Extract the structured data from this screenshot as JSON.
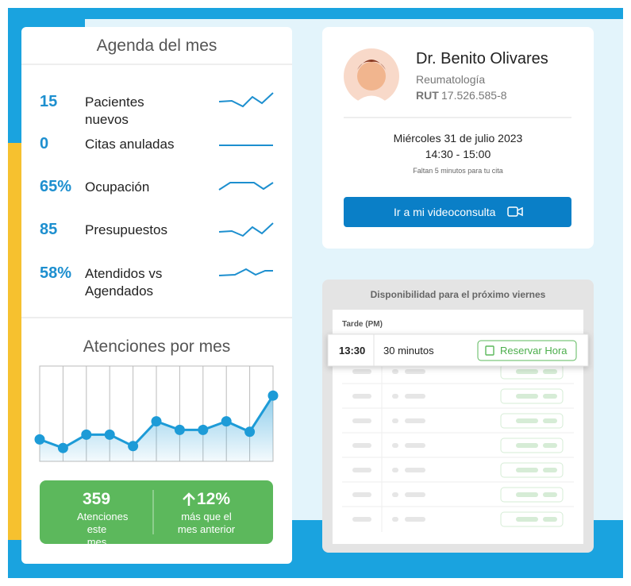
{
  "agenda": {
    "title": "Agenda del mes",
    "rows": [
      {
        "value": "15",
        "label": "Pacientes nuevos"
      },
      {
        "value": "0",
        "label": "Citas anuladas"
      },
      {
        "value": "65%",
        "label": "Ocupación"
      },
      {
        "value": "85",
        "label": "Presupuestos"
      },
      {
        "value": "58%",
        "label": "Atendidos vs Agendados"
      }
    ]
  },
  "chart_data": {
    "type": "line",
    "title": "Atenciones por mes",
    "values": [
      23,
      14,
      28,
      28,
      16,
      42,
      33,
      33,
      42,
      31,
      69
    ],
    "ylim": [
      0,
      100
    ],
    "color": "#1d9bd7"
  },
  "summary": {
    "total": "359",
    "total_label": "Atenciones este mes",
    "change": "12%",
    "change_label": "más que el mes anterior"
  },
  "doctor": {
    "name": "Dr. Benito Olivares",
    "specialty": "Reumatología",
    "rut_label": "RUT",
    "rut": "17.526.585-8",
    "date": "Miércoles 31 de julio 2023",
    "time": "14:30 - 15:00",
    "notice": "Faltan 5 minutos para tu cita",
    "button": "Ir a mi videoconsulta"
  },
  "availability": {
    "title": "Disponibilidad para el próximo viernes",
    "section": "Tarde (PM)",
    "slot": {
      "time": "13:30",
      "duration": "30 minutos",
      "button": "Reservar Hora"
    }
  }
}
